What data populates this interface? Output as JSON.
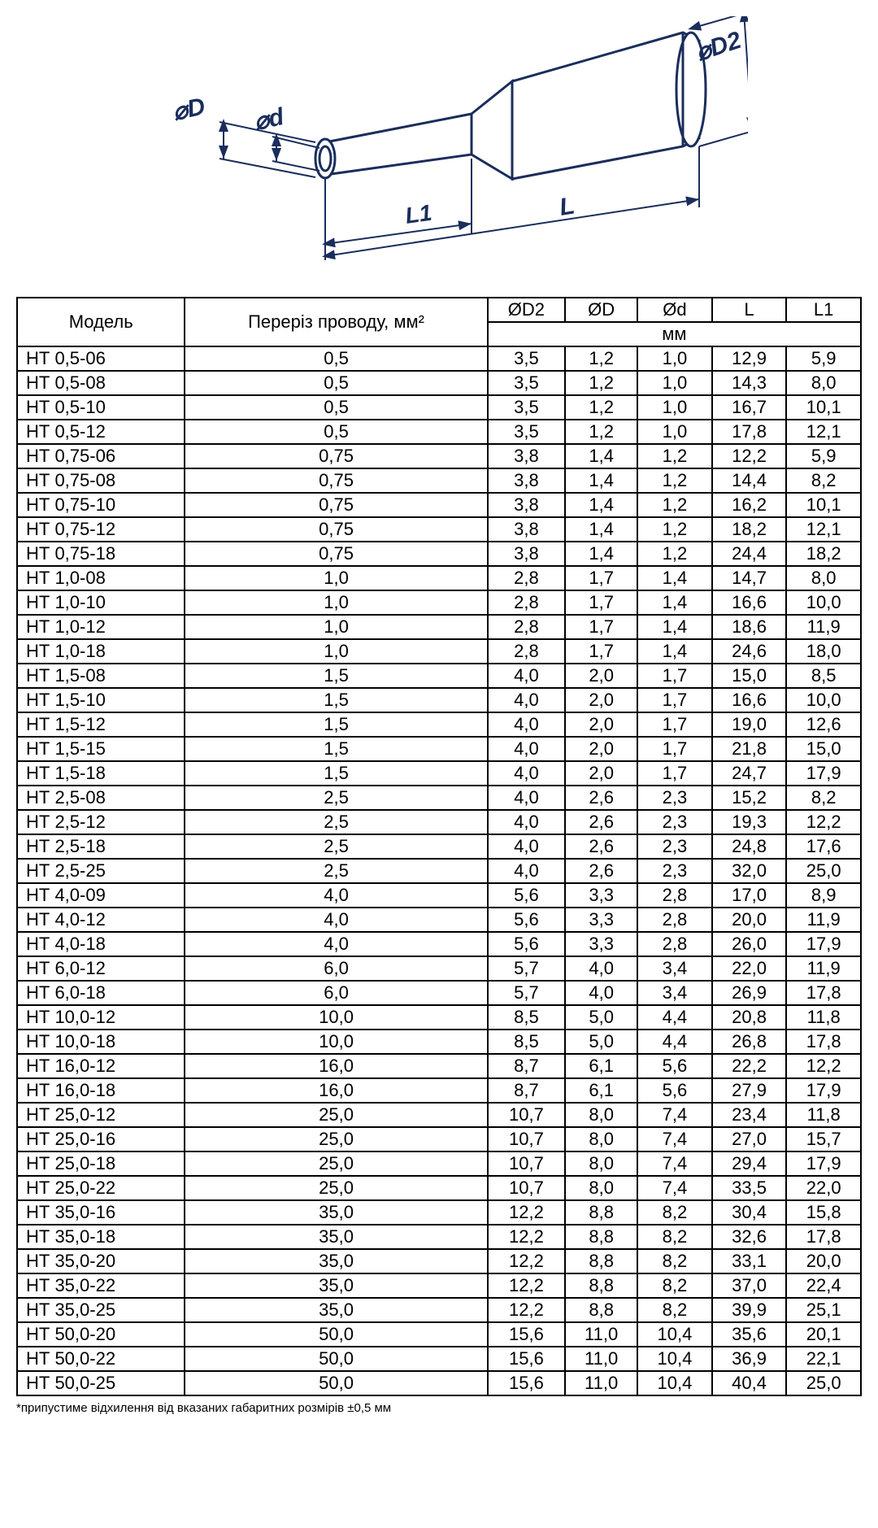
{
  "diagram": {
    "labels": {
      "D": "⌀D",
      "d": "⌀d",
      "D2": "⌀D2",
      "L": "L",
      "L1": "L1"
    },
    "stroke_color": "#1a2d5c",
    "fill_color": "#ffffff",
    "stroke_width": 3
  },
  "table": {
    "headers": {
      "model": "Модель",
      "section": "Переріз проводу, мм²",
      "d2": "ØD2",
      "d_big": "ØD",
      "d_small": "Ød",
      "l": "L",
      "l1": "L1",
      "unit": "мм"
    },
    "rows": [
      {
        "model": "НТ 0,5-06",
        "section": "0,5",
        "d2": "3,5",
        "d_big": "1,2",
        "d_small": "1,0",
        "l": "12,9",
        "l1": "5,9"
      },
      {
        "model": "НТ 0,5-08",
        "section": "0,5",
        "d2": "3,5",
        "d_big": "1,2",
        "d_small": "1,0",
        "l": "14,3",
        "l1": "8,0"
      },
      {
        "model": "НТ 0,5-10",
        "section": "0,5",
        "d2": "3,5",
        "d_big": "1,2",
        "d_small": "1,0",
        "l": "16,7",
        "l1": "10,1"
      },
      {
        "model": "НТ 0,5-12",
        "section": "0,5",
        "d2": "3,5",
        "d_big": "1,2",
        "d_small": "1,0",
        "l": "17,8",
        "l1": "12,1"
      },
      {
        "model": "НТ 0,75-06",
        "section": "0,75",
        "d2": "3,8",
        "d_big": "1,4",
        "d_small": "1,2",
        "l": "12,2",
        "l1": "5,9"
      },
      {
        "model": "НТ 0,75-08",
        "section": "0,75",
        "d2": "3,8",
        "d_big": "1,4",
        "d_small": "1,2",
        "l": "14,4",
        "l1": "8,2"
      },
      {
        "model": "НТ 0,75-10",
        "section": "0,75",
        "d2": "3,8",
        "d_big": "1,4",
        "d_small": "1,2",
        "l": "16,2",
        "l1": "10,1"
      },
      {
        "model": "НТ 0,75-12",
        "section": "0,75",
        "d2": "3,8",
        "d_big": "1,4",
        "d_small": "1,2",
        "l": "18,2",
        "l1": "12,1"
      },
      {
        "model": "НТ 0,75-18",
        "section": "0,75",
        "d2": "3,8",
        "d_big": "1,4",
        "d_small": "1,2",
        "l": "24,4",
        "l1": "18,2"
      },
      {
        "model": "НТ 1,0-08",
        "section": "1,0",
        "d2": "2,8",
        "d_big": "1,7",
        "d_small": "1,4",
        "l": "14,7",
        "l1": "8,0"
      },
      {
        "model": "НТ 1,0-10",
        "section": "1,0",
        "d2": "2,8",
        "d_big": "1,7",
        "d_small": "1,4",
        "l": "16,6",
        "l1": "10,0"
      },
      {
        "model": "НТ 1,0-12",
        "section": "1,0",
        "d2": "2,8",
        "d_big": "1,7",
        "d_small": "1,4",
        "l": "18,6",
        "l1": "11,9"
      },
      {
        "model": "НТ 1,0-18",
        "section": "1,0",
        "d2": "2,8",
        "d_big": "1,7",
        "d_small": "1,4",
        "l": "24,6",
        "l1": "18,0"
      },
      {
        "model": "НТ 1,5-08",
        "section": "1,5",
        "d2": "4,0",
        "d_big": "2,0",
        "d_small": "1,7",
        "l": "15,0",
        "l1": "8,5"
      },
      {
        "model": "НТ 1,5-10",
        "section": "1,5",
        "d2": "4,0",
        "d_big": "2,0",
        "d_small": "1,7",
        "l": "16,6",
        "l1": "10,0"
      },
      {
        "model": "НТ 1,5-12",
        "section": "1,5",
        "d2": "4,0",
        "d_big": "2,0",
        "d_small": "1,7",
        "l": "19,0",
        "l1": "12,6"
      },
      {
        "model": "НТ 1,5-15",
        "section": "1,5",
        "d2": "4,0",
        "d_big": "2,0",
        "d_small": "1,7",
        "l": "21,8",
        "l1": "15,0"
      },
      {
        "model": "НТ 1,5-18",
        "section": "1,5",
        "d2": "4,0",
        "d_big": "2,0",
        "d_small": "1,7",
        "l": "24,7",
        "l1": "17,9"
      },
      {
        "model": "НТ 2,5-08",
        "section": "2,5",
        "d2": "4,0",
        "d_big": "2,6",
        "d_small": "2,3",
        "l": "15,2",
        "l1": "8,2"
      },
      {
        "model": "НТ 2,5-12",
        "section": "2,5",
        "d2": "4,0",
        "d_big": "2,6",
        "d_small": "2,3",
        "l": "19,3",
        "l1": "12,2"
      },
      {
        "model": "НТ 2,5-18",
        "section": "2,5",
        "d2": "4,0",
        "d_big": "2,6",
        "d_small": "2,3",
        "l": "24,8",
        "l1": "17,6"
      },
      {
        "model": "НТ 2,5-25",
        "section": "2,5",
        "d2": "4,0",
        "d_big": "2,6",
        "d_small": "2,3",
        "l": "32,0",
        "l1": "25,0"
      },
      {
        "model": "НТ 4,0-09",
        "section": "4,0",
        "d2": "5,6",
        "d_big": "3,3",
        "d_small": "2,8",
        "l": "17,0",
        "l1": "8,9"
      },
      {
        "model": "НТ 4,0-12",
        "section": "4,0",
        "d2": "5,6",
        "d_big": "3,3",
        "d_small": "2,8",
        "l": "20,0",
        "l1": "11,9"
      },
      {
        "model": "НТ 4,0-18",
        "section": "4,0",
        "d2": "5,6",
        "d_big": "3,3",
        "d_small": "2,8",
        "l": "26,0",
        "l1": "17,9"
      },
      {
        "model": "НТ 6,0-12",
        "section": "6,0",
        "d2": "5,7",
        "d_big": "4,0",
        "d_small": "3,4",
        "l": "22,0",
        "l1": "11,9"
      },
      {
        "model": "НТ 6,0-18",
        "section": "6,0",
        "d2": "5,7",
        "d_big": "4,0",
        "d_small": "3,4",
        "l": "26,9",
        "l1": "17,8"
      },
      {
        "model": "НТ 10,0-12",
        "section": "10,0",
        "d2": "8,5",
        "d_big": "5,0",
        "d_small": "4,4",
        "l": "20,8",
        "l1": "11,8"
      },
      {
        "model": "НТ 10,0-18",
        "section": "10,0",
        "d2": "8,5",
        "d_big": "5,0",
        "d_small": "4,4",
        "l": "26,8",
        "l1": "17,8"
      },
      {
        "model": "НТ 16,0-12",
        "section": "16,0",
        "d2": "8,7",
        "d_big": "6,1",
        "d_small": "5,6",
        "l": "22,2",
        "l1": "12,2"
      },
      {
        "model": "НТ 16,0-18",
        "section": "16,0",
        "d2": "8,7",
        "d_big": "6,1",
        "d_small": "5,6",
        "l": "27,9",
        "l1": "17,9"
      },
      {
        "model": "НТ 25,0-12",
        "section": "25,0",
        "d2": "10,7",
        "d_big": "8,0",
        "d_small": "7,4",
        "l": "23,4",
        "l1": "11,8"
      },
      {
        "model": "НТ 25,0-16",
        "section": "25,0",
        "d2": "10,7",
        "d_big": "8,0",
        "d_small": "7,4",
        "l": "27,0",
        "l1": "15,7"
      },
      {
        "model": "НТ 25,0-18",
        "section": "25,0",
        "d2": "10,7",
        "d_big": "8,0",
        "d_small": "7,4",
        "l": "29,4",
        "l1": "17,9"
      },
      {
        "model": "НТ 25,0-22",
        "section": "25,0",
        "d2": "10,7",
        "d_big": "8,0",
        "d_small": "7,4",
        "l": "33,5",
        "l1": "22,0"
      },
      {
        "model": "НТ 35,0-16",
        "section": "35,0",
        "d2": "12,2",
        "d_big": "8,8",
        "d_small": "8,2",
        "l": "30,4",
        "l1": "15,8"
      },
      {
        "model": "НТ 35,0-18",
        "section": "35,0",
        "d2": "12,2",
        "d_big": "8,8",
        "d_small": "8,2",
        "l": "32,6",
        "l1": "17,8"
      },
      {
        "model": "НТ 35,0-20",
        "section": "35,0",
        "d2": "12,2",
        "d_big": "8,8",
        "d_small": "8,2",
        "l": "33,1",
        "l1": "20,0"
      },
      {
        "model": "НТ 35,0-22",
        "section": "35,0",
        "d2": "12,2",
        "d_big": "8,8",
        "d_small": "8,2",
        "l": "37,0",
        "l1": "22,4"
      },
      {
        "model": "НТ 35,0-25",
        "section": "35,0",
        "d2": "12,2",
        "d_big": "8,8",
        "d_small": "8,2",
        "l": "39,9",
        "l1": "25,1"
      },
      {
        "model": "НТ 50,0-20",
        "section": "50,0",
        "d2": "15,6",
        "d_big": "11,0",
        "d_small": "10,4",
        "l": "35,6",
        "l1": "20,1"
      },
      {
        "model": "НТ 50,0-22",
        "section": "50,0",
        "d2": "15,6",
        "d_big": "11,0",
        "d_small": "10,4",
        "l": "36,9",
        "l1": "22,1"
      },
      {
        "model": "НТ 50,0-25",
        "section": "50,0",
        "d2": "15,6",
        "d_big": "11,0",
        "d_small": "10,4",
        "l": "40,4",
        "l1": "25,0"
      }
    ]
  },
  "footnote": "*припустиме відхилення від вказаних габаритних розмірів ±0,5 мм"
}
